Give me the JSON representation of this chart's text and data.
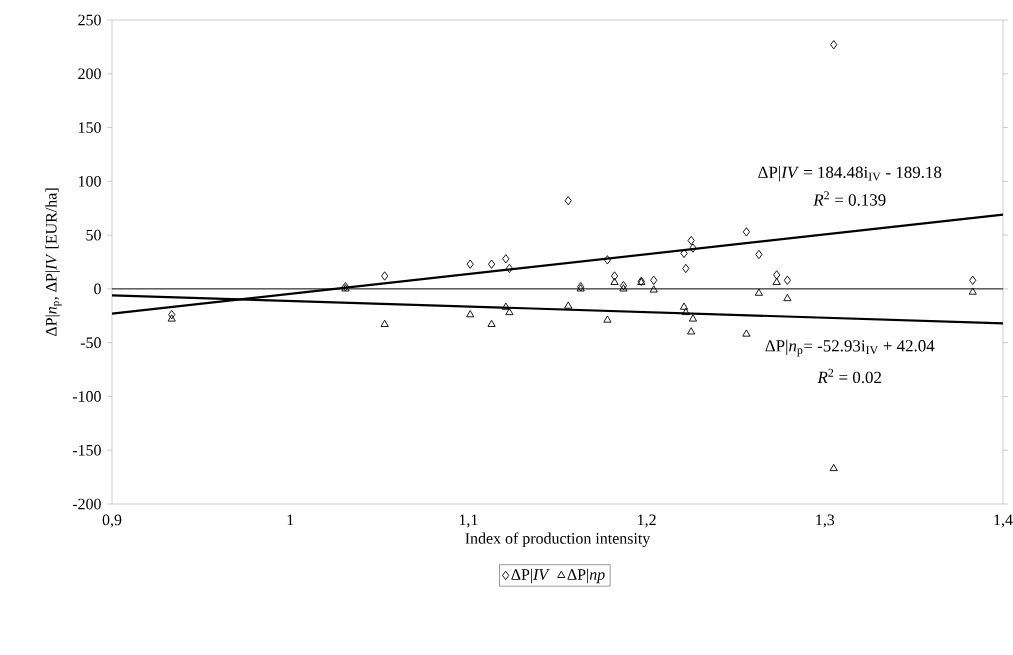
{
  "chart_data": {
    "type": "scatter",
    "xlabel": "Index of production intensity",
    "ylabel": "ΔP|*n*$_{p}$, ΔP|*IV* [EUR/ha]",
    "xlim": [
      0.9,
      1.4
    ],
    "ylim": [
      -200,
      250
    ],
    "xticks": [
      {
        "value": 0.9,
        "label": "0,9"
      },
      {
        "value": 1,
        "label": "1"
      },
      {
        "value": 1.1,
        "label": "1,1"
      },
      {
        "value": 1.2,
        "label": "1,2"
      },
      {
        "value": 1.3,
        "label": "1,3"
      },
      {
        "value": 1.4,
        "label": "1,4"
      }
    ],
    "yticks": [
      -200,
      -150,
      -100,
      -50,
      0,
      50,
      100,
      150,
      200,
      250
    ],
    "grid": false,
    "legend": "bottom",
    "ref_lines": [
      {
        "axis": "y",
        "value": 0,
        "color": "#000000"
      }
    ],
    "annotations": [
      "ΔP|*IV* = 184.48i$_{IV}$ - 189.18",
      "*R*$^{2}$ = 0.139",
      "ΔP|*n*$_{p}$= -52.93i$_{IV}$ + 42.04",
      "*R*$^{2}$ = 0.02"
    ],
    "series": [
      {
        "name": "ΔP|*IV*",
        "marker": "diamond",
        "color": "#000000",
        "x": [
          0.9335,
          1.031,
          1.053,
          1.101,
          1.113,
          1.121,
          1.123,
          1.156,
          1.163,
          1.178,
          1.182,
          1.187,
          1.197,
          1.204,
          1.221,
          1.222,
          1.225,
          1.226,
          1.256,
          1.263,
          1.273,
          1.279,
          1.305,
          1.383
        ],
        "values": [
          -24,
          2,
          12,
          23,
          23,
          28,
          19,
          82,
          2,
          27,
          12,
          3,
          7,
          8,
          33,
          19,
          45,
          38,
          53,
          32,
          13,
          8,
          227,
          8
        ]
      },
      {
        "name": "ΔP|*np*",
        "marker": "triangle",
        "color": "#000000",
        "x": [
          0.9335,
          1.031,
          1.053,
          1.101,
          1.113,
          1.121,
          1.123,
          1.156,
          1.163,
          1.178,
          1.182,
          1.187,
          1.197,
          1.204,
          1.221,
          1.222,
          1.225,
          1.226,
          1.256,
          1.263,
          1.273,
          1.279,
          1.305,
          1.383
        ],
        "values": [
          -28,
          0,
          -33,
          -24,
          -33,
          -17,
          -22,
          -16,
          0,
          -29,
          6,
          0,
          6,
          -1,
          -17,
          -22,
          -40,
          -28,
          -42,
          -4,
          6,
          -9,
          -167,
          -3
        ]
      },
      {
        "type": "line",
        "marker": "none",
        "line_style": "solid",
        "color": "#000000",
        "x": [
          0.9,
          1.4
        ],
        "values": [
          -23,
          69
        ]
      },
      {
        "type": "line",
        "marker": "none",
        "line_style": "solid",
        "color": "#000000",
        "x": [
          0.9,
          1.4
        ],
        "values": [
          -6,
          -32
        ]
      }
    ]
  }
}
